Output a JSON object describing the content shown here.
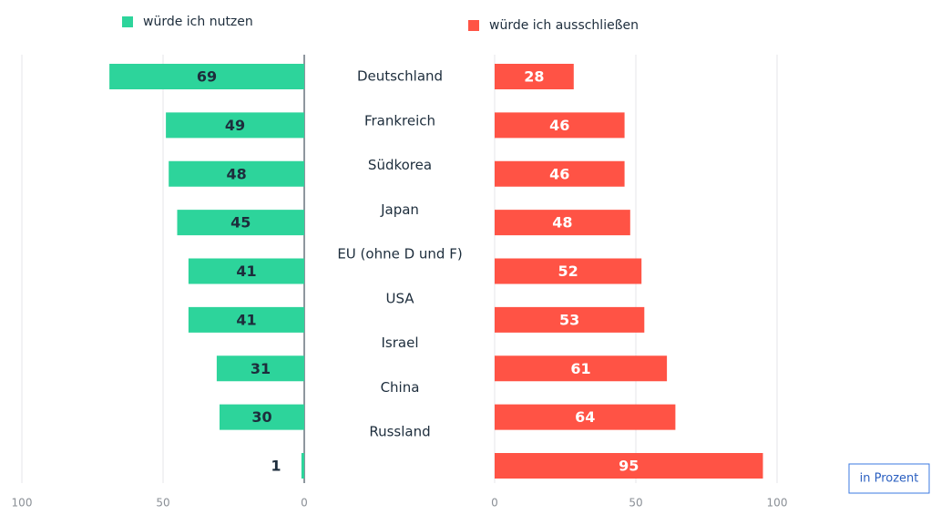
{
  "chart_data": {
    "type": "butterfly_bar",
    "categories": [
      "Deutschland",
      "Frankreich",
      "Südkorea",
      "Japan",
      "EU (ohne D und F)",
      "USA",
      "Israel",
      "China",
      "Russland"
    ],
    "series": [
      {
        "name": "würde ich nutzen",
        "color": "#2dd49b",
        "values": [
          69,
          49,
          48,
          45,
          41,
          41,
          31,
          30,
          1
        ]
      },
      {
        "name": "würde ich ausschließen",
        "color": "#ff5345",
        "values": [
          28,
          46,
          46,
          48,
          52,
          53,
          61,
          64,
          95
        ]
      }
    ],
    "xlim": [
      0,
      100
    ],
    "xticks": [
      0,
      50,
      100
    ],
    "grid": true,
    "unit_note": "in Prozent"
  }
}
